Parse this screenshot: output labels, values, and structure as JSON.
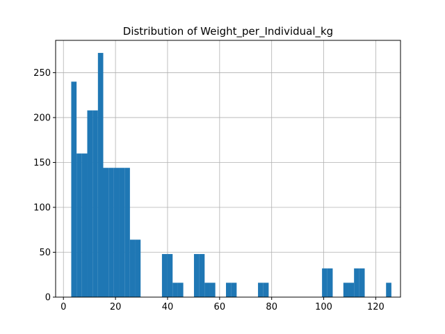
{
  "chart_data": {
    "type": "bar",
    "title": "Distribution of Weight_per_Individual_kg",
    "xlabel": "",
    "ylabel": "",
    "xlim": [
      -3,
      129.5
    ],
    "ylim": [
      0,
      286
    ],
    "grid": true,
    "bar_color": "#1f77b4",
    "bin_edges": [
      3.0,
      5.05,
      7.1,
      9.15,
      11.2,
      13.25,
      15.3,
      17.35,
      19.4,
      21.45,
      23.5,
      25.55,
      27.6,
      29.65,
      31.7,
      33.75,
      35.8,
      37.85,
      39.9,
      41.95,
      44.0,
      46.05,
      48.1,
      50.15,
      52.2,
      54.25,
      56.3,
      58.35,
      60.4,
      62.45,
      64.5,
      66.55,
      68.6,
      70.65,
      72.7,
      74.75,
      76.8,
      78.85,
      80.9,
      82.95,
      85.0,
      87.05,
      89.1,
      91.15,
      93.2,
      95.25,
      97.3,
      99.35,
      101.4,
      103.45,
      105.5,
      107.55,
      109.6,
      111.65,
      113.7,
      115.75,
      117.8,
      119.85,
      121.9,
      123.95,
      126.0
    ],
    "counts": [
      240,
      160,
      160,
      208,
      208,
      272,
      144,
      144,
      144,
      144,
      144,
      64,
      64,
      0,
      0,
      0,
      0,
      48,
      48,
      16,
      16,
      0,
      0,
      48,
      48,
      16,
      16,
      0,
      0,
      16,
      16,
      0,
      0,
      0,
      0,
      16,
      16,
      0,
      0,
      0,
      0,
      0,
      0,
      0,
      0,
      0,
      0,
      32,
      32,
      0,
      0,
      16,
      16,
      32,
      32,
      0,
      0,
      0,
      0,
      16,
      16
    ],
    "xticks": [
      0,
      20,
      40,
      60,
      80,
      100,
      120
    ],
    "xtick_labels": [
      "0",
      "20",
      "40",
      "60",
      "80",
      "100",
      "120"
    ],
    "yticks": [
      0,
      50,
      100,
      150,
      200,
      250
    ],
    "ytick_labels": [
      "0",
      "50",
      "100",
      "150",
      "200",
      "250"
    ]
  }
}
